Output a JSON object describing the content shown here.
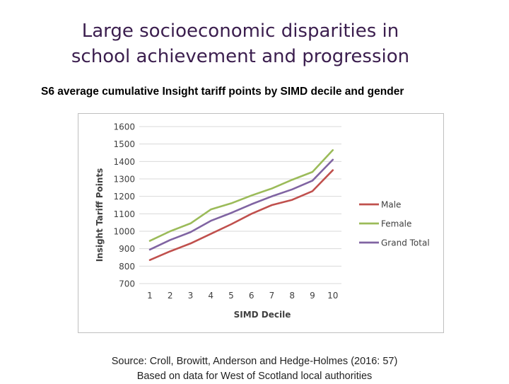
{
  "slide": {
    "title_line1": "Large socioeconomic disparities in",
    "title_line2": "school achievement and progression"
  },
  "chart_caption": "S6 average cumulative Insight tariff points by SIMD decile and gender",
  "source": {
    "line1": "Source: Croll, Browitt, Anderson and Hedge-Holmes (2016: 57)",
    "line2": "Based on data for West of Scotland local authorities"
  },
  "chart_data": {
    "type": "line",
    "x": [
      1,
      2,
      3,
      4,
      5,
      6,
      7,
      8,
      9,
      10
    ],
    "xlabel": "SIMD Decile",
    "ylabel": "Insight Tariff Points",
    "ylim": [
      700,
      1600
    ],
    "yticks": [
      700,
      800,
      900,
      1000,
      1100,
      1200,
      1300,
      1400,
      1500,
      1600
    ],
    "grid": true,
    "legend": "right",
    "series": [
      {
        "name": "Male",
        "color": "#c0504d",
        "values": [
          835,
          885,
          930,
          985,
          1040,
          1100,
          1150,
          1180,
          1230,
          1350
        ]
      },
      {
        "name": "Female",
        "color": "#9bbb59",
        "values": [
          945,
          1000,
          1045,
          1125,
          1160,
          1205,
          1245,
          1295,
          1340,
          1465
        ]
      },
      {
        "name": "Grand Total",
        "color": "#8064a2",
        "values": [
          895,
          950,
          995,
          1060,
          1105,
          1155,
          1200,
          1240,
          1290,
          1410
        ]
      }
    ]
  }
}
